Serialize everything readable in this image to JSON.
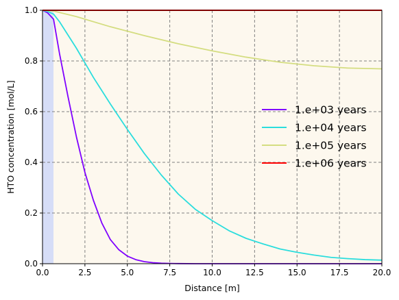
{
  "chart_data": {
    "type": "line",
    "title": "",
    "xlabel": "Distance [m]",
    "ylabel": "HTO concentration [mol/L]",
    "xlim": [
      0,
      20
    ],
    "ylim": [
      0,
      1
    ],
    "grid": true,
    "legend_position": "center-right",
    "x_ticks": [
      0.0,
      2.5,
      5.0,
      7.5,
      10.0,
      12.5,
      15.0,
      17.5,
      20.0
    ],
    "x_tick_labels": [
      "0.0",
      "2.5",
      "5.0",
      "7.5",
      "10.0",
      "12.5",
      "15.0",
      "17.5",
      "20.0"
    ],
    "y_ticks": [
      0.0,
      0.2,
      0.4,
      0.6,
      0.8,
      1.0
    ],
    "y_tick_labels": [
      "0.0",
      "0.2",
      "0.4",
      "0.6",
      "0.8",
      "1.0"
    ],
    "background_colors": {
      "left_zone": "#d6ddf7",
      "right_zone": "#fdf8ee"
    },
    "zones": [
      {
        "name": "left-zone",
        "x_range": [
          0,
          0.65
        ]
      },
      {
        "name": "right-zone",
        "x_range": [
          0.65,
          20
        ]
      }
    ],
    "series": [
      {
        "name": "1.e+03 years",
        "color": "#7f00ff",
        "x": [
          0,
          0.3,
          0.65,
          1.0,
          1.5,
          2.0,
          2.5,
          3.0,
          3.5,
          4.0,
          4.5,
          5.0,
          5.5,
          6.0,
          6.5,
          7.0,
          7.5,
          8.0,
          9.0,
          10.0,
          12.0,
          15.0,
          20.0
        ],
        "y": [
          1.0,
          0.99,
          0.965,
          0.83,
          0.66,
          0.5,
          0.36,
          0.25,
          0.16,
          0.095,
          0.055,
          0.03,
          0.016,
          0.008,
          0.004,
          0.002,
          0.001,
          0.0005,
          0.0,
          0.0,
          0.0,
          0.0,
          0.0
        ]
      },
      {
        "name": "1.e+04 years",
        "color": "#2adddd",
        "x": [
          0,
          0.3,
          0.65,
          1.0,
          2.0,
          3.0,
          4.0,
          5.0,
          6.0,
          7.0,
          8.0,
          9.0,
          10.0,
          11.0,
          12.0,
          13.0,
          14.0,
          15.0,
          16.0,
          17.0,
          18.0,
          19.0,
          20.0
        ],
        "y": [
          1.0,
          0.995,
          0.985,
          0.955,
          0.85,
          0.735,
          0.63,
          0.53,
          0.435,
          0.35,
          0.275,
          0.215,
          0.17,
          0.13,
          0.1,
          0.078,
          0.058,
          0.045,
          0.034,
          0.025,
          0.02,
          0.016,
          0.014
        ]
      },
      {
        "name": "1.e+05 years",
        "color": "#d4dd80",
        "x": [
          0,
          0.65,
          2.0,
          4.0,
          6.0,
          8.0,
          10.0,
          12.0,
          14.0,
          16.0,
          18.0,
          20.0
        ],
        "y": [
          1.0,
          0.997,
          0.975,
          0.935,
          0.9,
          0.868,
          0.84,
          0.815,
          0.795,
          0.781,
          0.772,
          0.769
        ]
      },
      {
        "name": "1.e+06 years",
        "color": "#ff0000",
        "x": [
          0,
          20
        ],
        "y": [
          1.0,
          1.0
        ]
      }
    ]
  }
}
